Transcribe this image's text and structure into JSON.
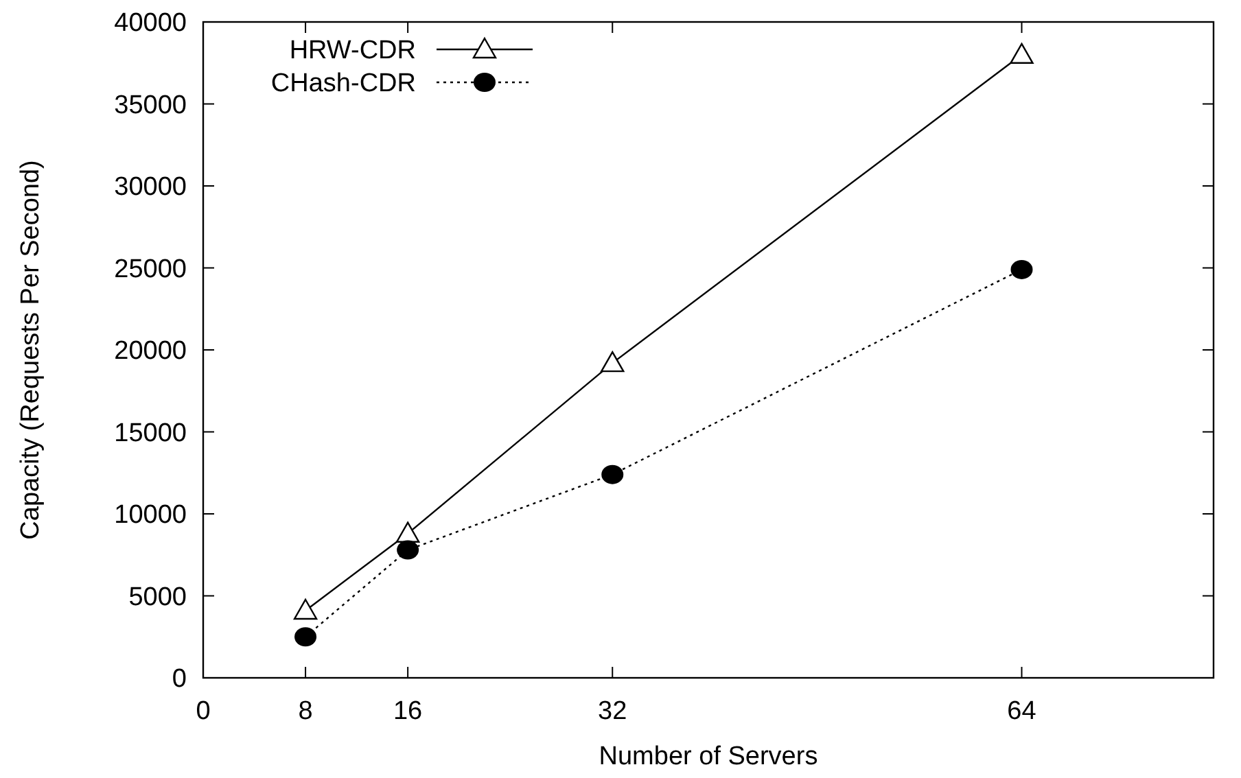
{
  "chart_data": {
    "type": "line",
    "xlabel": "Number of Servers",
    "ylabel": "Capacity (Requests Per Second)",
    "x": [
      8,
      16,
      32,
      64
    ],
    "series": [
      {
        "name": "HRW-CDR",
        "color": "#000000",
        "values": [
          4100,
          8800,
          19200,
          38000
        ],
        "marker": "triangle",
        "line_style": "solid"
      },
      {
        "name": "CHash-CDR",
        "color": "#000000",
        "values": [
          2500,
          7800,
          12400,
          24900
        ],
        "marker": "circle",
        "line_style": "dotted"
      }
    ],
    "xlim": [
      0,
      79
    ],
    "xticks": [
      0,
      8,
      16,
      32,
      64
    ],
    "ylim": [
      0,
      40000
    ],
    "yticks": [
      0,
      5000,
      10000,
      15000,
      20000,
      25000,
      30000,
      35000,
      40000
    ],
    "grid": false,
    "legend": "top left"
  }
}
